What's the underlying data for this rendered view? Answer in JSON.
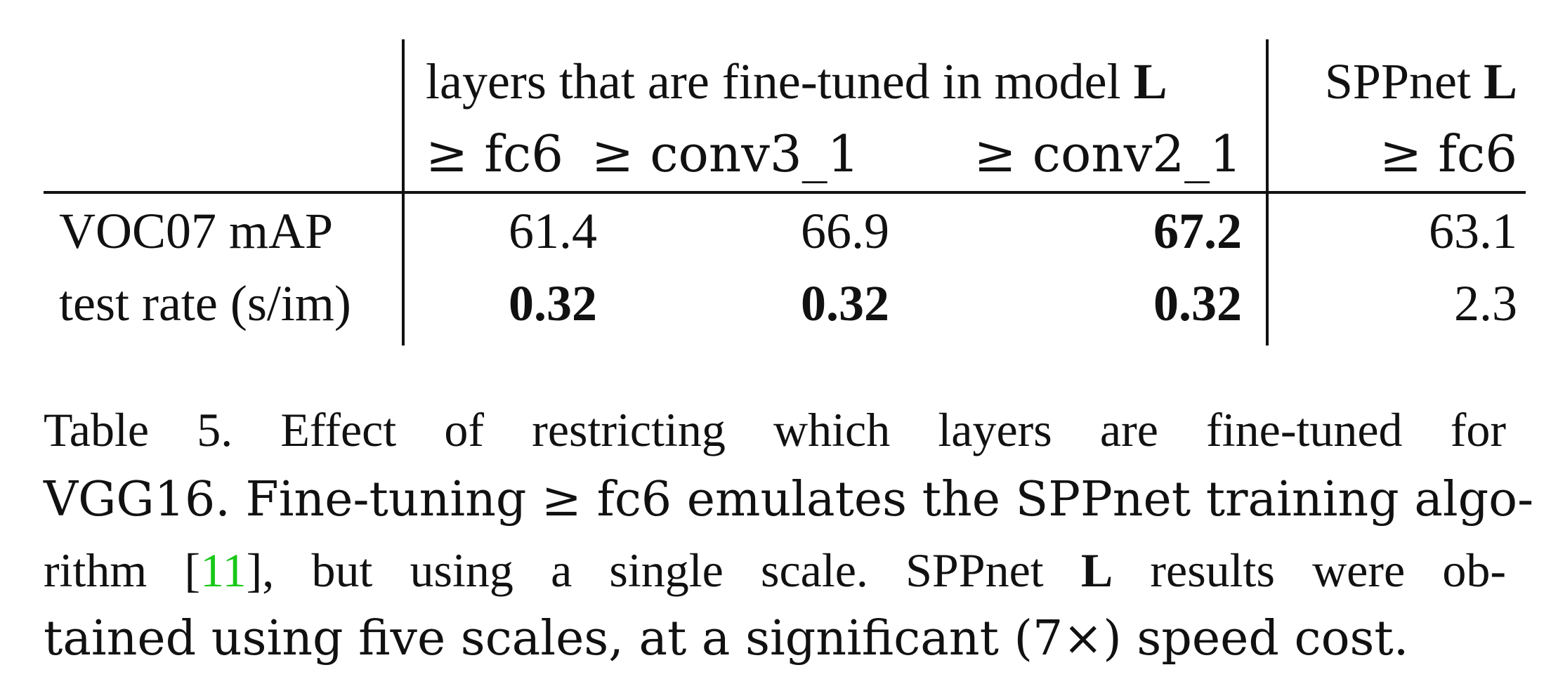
{
  "table": {
    "group_header_left_prefix": "layers that are fine-tuned in model ",
    "group_header_left_bold": "L",
    "group_header_right_prefix": "SPPnet ",
    "group_header_right_bold": "L",
    "subheaders": [
      "≥ fc6",
      "≥ conv3_1",
      "≥ conv2_1",
      "≥ fc6"
    ],
    "rows": [
      {
        "label": "VOC07 mAP",
        "values": [
          "61.4",
          "66.9",
          "67.2",
          "63.1"
        ],
        "bold": [
          false,
          false,
          true,
          false
        ]
      },
      {
        "label": "test rate (s/im)",
        "values": [
          "0.32",
          "0.32",
          "0.32",
          "2.3"
        ],
        "bold": [
          true,
          true,
          true,
          false
        ]
      }
    ]
  },
  "caption": {
    "line1": "Table 5. Effect of restricting which layers are fine-tuned for",
    "line2": "VGG16.  Fine-tuning ≥ fc6 emulates the SPPnet training algo-",
    "line3_prefix": "rithm [",
    "line3_cite": "11",
    "line3_suffix": "], but using a single scale.  SPPnet ",
    "line3_bold": "L",
    "line3_tail": " results were ob-",
    "line4": "tained using five scales, at a significant (7×) speed cost."
  },
  "colors": {
    "text": "#111111",
    "citation": "#18c818"
  }
}
